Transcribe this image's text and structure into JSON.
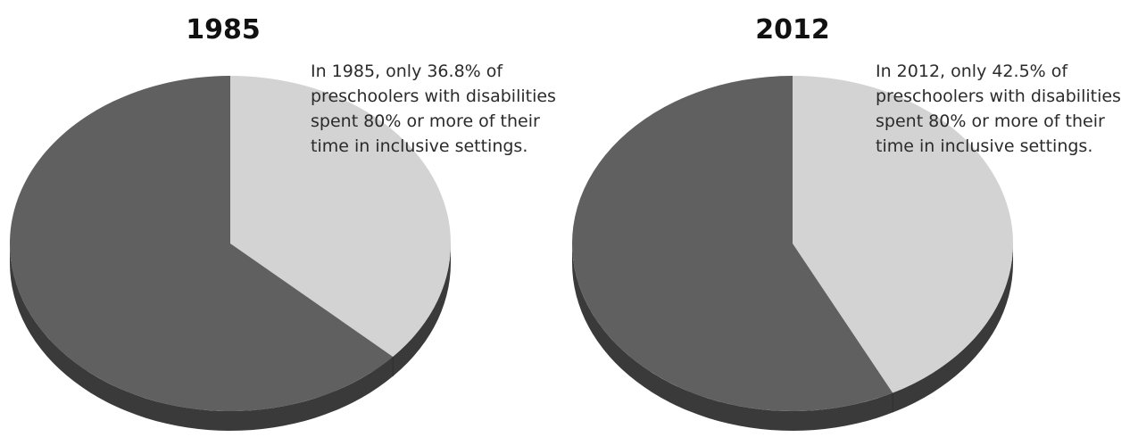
{
  "chart_data": [
    {
      "type": "pie",
      "title": "1985",
      "slices": [
        {
          "label": "",
          "value": 36.8,
          "color": "#d3d3d3"
        },
        {
          "label": "",
          "value": 63.2,
          "color": "#606060"
        }
      ],
      "annotation": [
        "In 1985, only 36.8% of",
        "preschoolers with disabilities",
        "spent 80% or more of their",
        "time in inclusive settings."
      ]
    },
    {
      "type": "pie",
      "title": "2012",
      "slices": [
        {
          "label": "",
          "value": 42.5,
          "color": "#d3d3d3"
        },
        {
          "label": "",
          "value": 57.5,
          "color": "#606060"
        }
      ],
      "annotation": [
        "In 2012, only 42.5% of",
        "preschoolers with disabilities",
        "spent 80% or more of their",
        "time in inclusive settings."
      ]
    }
  ],
  "colors": {
    "pie_dark": "#606060",
    "pie_light": "#d3d3d3",
    "pie_side": "#3a3a3a"
  }
}
